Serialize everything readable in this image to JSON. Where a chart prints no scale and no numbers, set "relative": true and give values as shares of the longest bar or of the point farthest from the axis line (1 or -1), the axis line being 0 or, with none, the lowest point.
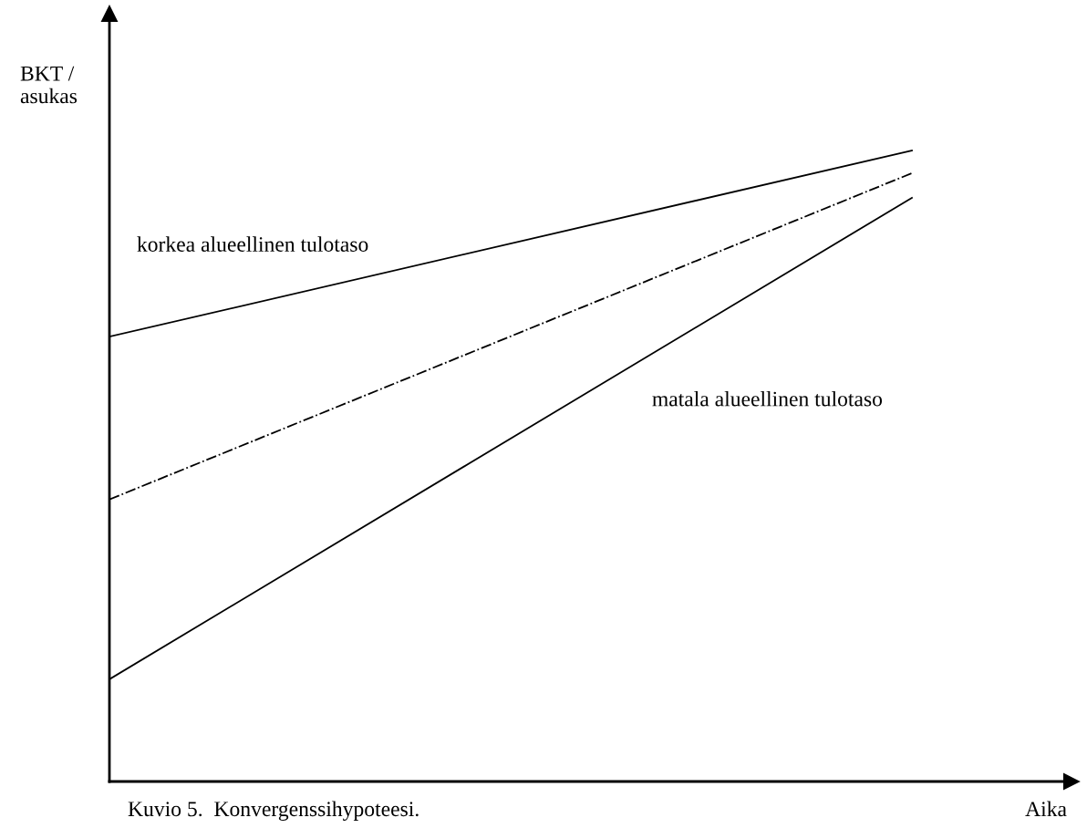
{
  "chart_data": {
    "type": "line",
    "relative": true,
    "xlabel": "Aika",
    "ylabel": "BKT /\nasukas",
    "categories": [
      null,
      null
    ],
    "series": [
      {
        "name": "korkea alueellinen tulotaso",
        "color": "#000000",
        "values": [
          0.705,
          1
        ],
        "line_style": "solid"
      },
      {
        "color": "#000000",
        "values": [
          0.447,
          0.964
        ],
        "line_style": "dashdot"
      },
      {
        "name": "matala alueellinen tulotaso",
        "color": "#000000",
        "values": [
          0.162,
          0.925
        ],
        "line_style": "solid"
      }
    ],
    "legend": false,
    "grid": false,
    "marker": "none",
    "annotations": [
      "Kuvio 5.  Konvergenssihypoteesi."
    ]
  }
}
